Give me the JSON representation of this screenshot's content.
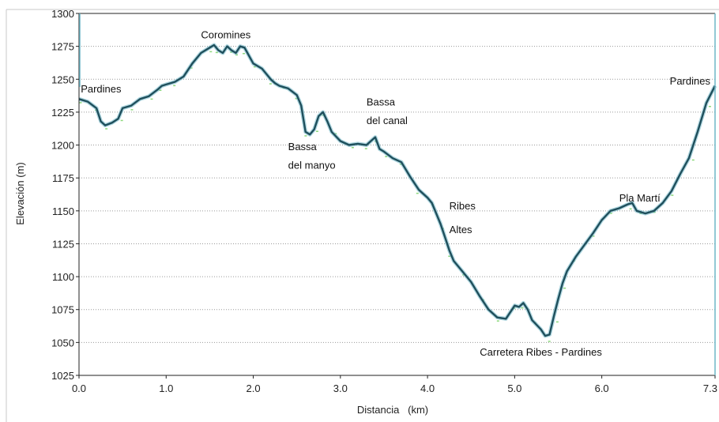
{
  "chart_data": {
    "type": "line",
    "title": "",
    "xlabel": "Distancia   (km)",
    "ylabel": "Elevación (m)",
    "xlim": [
      0,
      7.3
    ],
    "ylim": [
      1025,
      1300
    ],
    "grid": "horizontal dotted",
    "legend": "none",
    "x_ticks": [
      {
        "value": 0.0,
        "label": "0.0"
      },
      {
        "value": 1.0,
        "label": "1.0"
      },
      {
        "value": 2.0,
        "label": "2.0"
      },
      {
        "value": 3.0,
        "label": "3.0"
      },
      {
        "value": 4.0,
        "label": "4.0"
      },
      {
        "value": 5.0,
        "label": "5.0"
      },
      {
        "value": 6.0,
        "label": "6.0"
      },
      {
        "value": 7.3,
        "label": "7.3"
      }
    ],
    "y_ticks": [
      {
        "value": 1025,
        "label": "1025"
      },
      {
        "value": 1050,
        "label": "1050"
      },
      {
        "value": 1075,
        "label": "1075"
      },
      {
        "value": 1100,
        "label": "1100"
      },
      {
        "value": 1125,
        "label": "1125"
      },
      {
        "value": 1150,
        "label": "1150"
      },
      {
        "value": 1175,
        "label": "1175"
      },
      {
        "value": 1200,
        "label": "1200"
      },
      {
        "value": 1225,
        "label": "1225"
      },
      {
        "value": 1250,
        "label": "1250"
      },
      {
        "value": 1275,
        "label": "1275"
      },
      {
        "value": 1300,
        "label": "1300"
      }
    ],
    "colors": {
      "line": "#1f4f5c",
      "line_highlight": "#6fb7c7",
      "noise": "#6fcf5a",
      "grid": "#9a9a9a"
    },
    "series": [
      {
        "x": [
          0.0,
          0.1,
          0.2,
          0.25,
          0.3,
          0.38,
          0.45,
          0.5,
          0.6,
          0.7,
          0.8,
          0.9,
          0.95,
          1.0,
          1.1,
          1.2,
          1.3,
          1.4,
          1.5,
          1.55,
          1.6,
          1.65,
          1.7,
          1.75,
          1.8,
          1.85,
          1.9,
          1.95,
          2.0,
          2.1,
          2.2,
          2.25,
          2.3,
          2.4,
          2.5,
          2.55,
          2.6,
          2.65,
          2.7,
          2.75,
          2.8,
          2.85,
          2.9,
          3.0,
          3.1,
          3.2,
          3.3,
          3.35,
          3.4,
          3.45,
          3.5,
          3.6,
          3.7,
          3.8,
          3.9,
          4.0,
          4.05,
          4.1,
          4.15,
          4.2,
          4.25,
          4.3,
          4.4,
          4.5,
          4.6,
          4.7,
          4.8,
          4.9,
          5.0,
          5.05,
          5.1,
          5.15,
          5.2,
          5.3,
          5.35,
          5.4,
          5.45,
          5.5,
          5.55,
          5.6,
          5.7,
          5.8,
          5.9,
          6.0,
          6.1,
          6.2,
          6.3,
          6.35,
          6.4,
          6.5,
          6.6,
          6.7,
          6.8,
          6.9,
          7.0,
          7.1,
          7.2,
          7.3
        ],
        "y": [
          1235,
          1233,
          1228,
          1218,
          1215,
          1217,
          1220,
          1228,
          1230,
          1235,
          1237,
          1242,
          1245,
          1246,
          1248,
          1252,
          1262,
          1270,
          1274,
          1276,
          1272,
          1270,
          1275,
          1272,
          1270,
          1275,
          1274,
          1268,
          1262,
          1258,
          1250,
          1247,
          1245,
          1243,
          1238,
          1230,
          1210,
          1208,
          1212,
          1222,
          1225,
          1218,
          1210,
          1203,
          1200,
          1201,
          1200,
          1203,
          1206,
          1197,
          1195,
          1190,
          1187,
          1176,
          1166,
          1160,
          1156,
          1148,
          1140,
          1130,
          1120,
          1112,
          1104,
          1096,
          1085,
          1075,
          1069,
          1068,
          1078,
          1077,
          1080,
          1075,
          1067,
          1060,
          1055,
          1056,
          1070,
          1083,
          1095,
          1104,
          1115,
          1124,
          1133,
          1143,
          1150,
          1152,
          1155,
          1156,
          1150,
          1148,
          1150,
          1156,
          1165,
          1178,
          1190,
          1210,
          1232,
          1245
        ]
      }
    ],
    "annotations": [
      {
        "text": "Pardines",
        "x": 0.02,
        "y": 1240
      },
      {
        "text": "Coromines",
        "x": 1.4,
        "y": 1281
      },
      {
        "text": "Bassa",
        "x": 2.4,
        "y": 1196
      },
      {
        "text": "del manyo",
        "x": 2.4,
        "y": 1182
      },
      {
        "text": "Bassa",
        "x": 3.3,
        "y": 1230
      },
      {
        "text": "del canal",
        "x": 3.3,
        "y": 1216
      },
      {
        "text": "Ribes",
        "x": 4.25,
        "y": 1151
      },
      {
        "text": "Altes",
        "x": 4.25,
        "y": 1133
      },
      {
        "text": "Pla Martí",
        "x": 6.2,
        "y": 1157
      },
      {
        "text": "Carretera Ribes - Pardines",
        "x": 4.6,
        "y": 1040
      },
      {
        "text": "Pardines",
        "x": 6.78,
        "y": 1246
      }
    ]
  }
}
